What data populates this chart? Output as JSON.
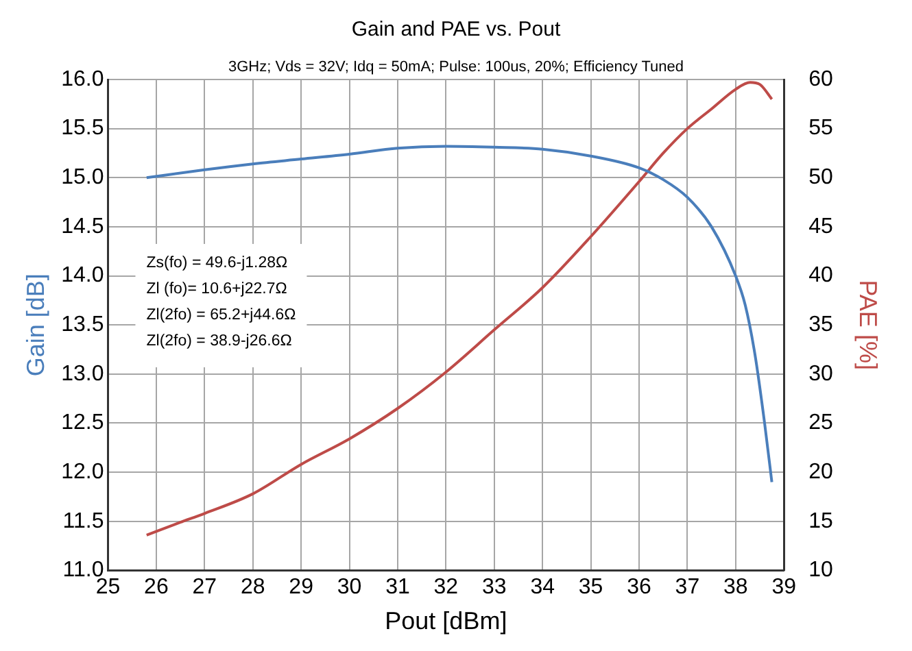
{
  "chart_data": {
    "type": "line",
    "title": "Gain and PAE vs. Pout",
    "subtitle": "3GHz; Vds = 32V; Idq = 50mA; Pulse: 100us, 20%; Efficiency Tuned",
    "xlabel": "Pout [dBm]",
    "ylabel": "Gain [dB]",
    "y2label": "PAE [%]",
    "xlim": [
      25,
      39
    ],
    "xticks": [
      25,
      26,
      27,
      28,
      29,
      30,
      31,
      32,
      33,
      34,
      35,
      36,
      37,
      38,
      39
    ],
    "ylim": [
      11.0,
      16.0
    ],
    "yticks": [
      {
        "value": 11,
        "label": "11.0"
      },
      {
        "value": 11.5,
        "label": "11.5"
      },
      {
        "value": 12,
        "label": "12.0"
      },
      {
        "value": 12.5,
        "label": "12.5"
      },
      {
        "value": 13,
        "label": "13.0"
      },
      {
        "value": 13.5,
        "label": "13.5"
      },
      {
        "value": 14,
        "label": "14.0"
      },
      {
        "value": 14.5,
        "label": "14.5"
      },
      {
        "value": 15,
        "label": "15.0"
      },
      {
        "value": 15.5,
        "label": "15.5"
      },
      {
        "value": 16,
        "label": "16.0"
      }
    ],
    "y2lim": [
      10,
      60
    ],
    "y2ticks": [
      10,
      15,
      20,
      25,
      30,
      35,
      40,
      45,
      50,
      55,
      60
    ],
    "grid": true,
    "legend": false,
    "marker": "none",
    "line_style": "solid",
    "annotations": [
      "Zs(fo) = 49.6-j1.28Ω",
      "Zl (fo)= 10.6+j22.7Ω",
      "Zl(2fo) = 65.2+j44.6Ω",
      "Zl(2fo) = 38.9-j26.6Ω"
    ],
    "series": [
      {
        "color": "#4a7ebb",
        "x": [
          25.8,
          27,
          28,
          29,
          30,
          31,
          32,
          33,
          34,
          35,
          36,
          36.5,
          37,
          37.5,
          38,
          38.2,
          38.4,
          38.6,
          38.75
        ],
        "values": [
          15.0,
          15.08,
          15.14,
          15.19,
          15.24,
          15.3,
          15.32,
          15.31,
          15.29,
          15.22,
          15.1,
          14.98,
          14.8,
          14.5,
          14.0,
          13.7,
          13.2,
          12.5,
          11.9
        ]
      },
      {
        "color": "#be4b48",
        "axis": "y2",
        "x": [
          25.8,
          26.5,
          27,
          28,
          29,
          30,
          31,
          32,
          33,
          34,
          35,
          36,
          36.5,
          37,
          37.5,
          38,
          38.3,
          38.5,
          38.75
        ],
        "values": [
          13.6,
          14.9,
          15.8,
          17.8,
          20.8,
          23.4,
          26.5,
          30.2,
          34.5,
          38.8,
          44.0,
          49.6,
          52.5,
          55.0,
          57.0,
          59.0,
          59.7,
          59.5,
          58.0
        ]
      }
    ]
  }
}
